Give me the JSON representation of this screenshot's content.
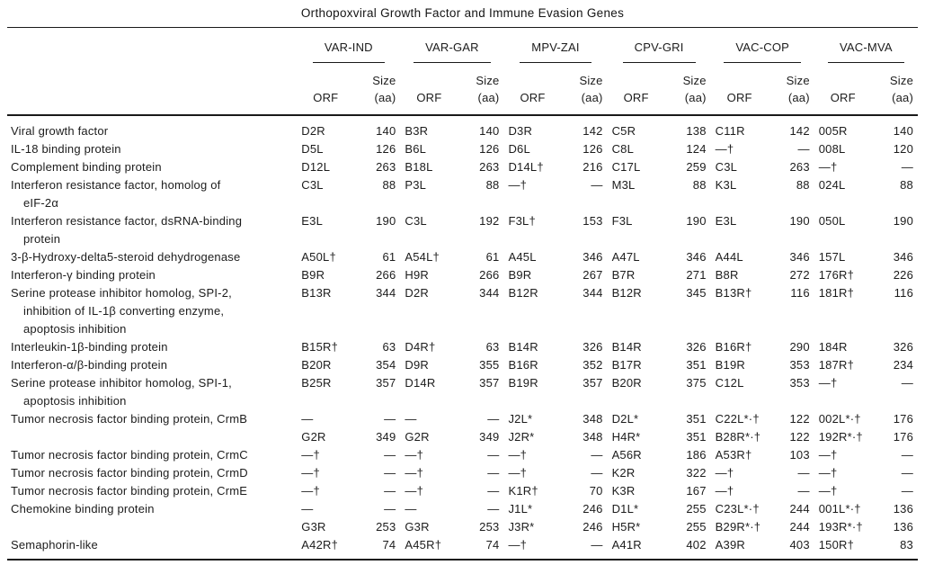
{
  "title": "Orthopoxviral Growth Factor and Immune Evasion Genes",
  "table": {
    "orf_label": "ORF",
    "size_label_line1": "Size",
    "size_label_line2": "(aa)",
    "groups": [
      "VAR-IND",
      "VAR-GAR",
      "MPV-ZAI",
      "CPV-GRI",
      "VAC-COP",
      "VAC-MVA"
    ],
    "rows": [
      {
        "label_lines": [
          "Viral growth factor"
        ],
        "cells": [
          "D2R",
          "140",
          "B3R",
          "140",
          "D3R",
          "142",
          "C5R",
          "138",
          "C11R",
          "142",
          "005R",
          "140"
        ]
      },
      {
        "label_lines": [
          "IL-18 binding protein"
        ],
        "cells": [
          "D5L",
          "126",
          "B6L",
          "126",
          "D6L",
          "126",
          "C8L",
          "124",
          "—†",
          "—",
          "008L",
          "120"
        ]
      },
      {
        "label_lines": [
          "Complement binding protein"
        ],
        "cells": [
          "D12L",
          "263",
          "B18L",
          "263",
          "D14L†",
          "216",
          "C17L",
          "259",
          "C3L",
          "263",
          "—†",
          "—"
        ]
      },
      {
        "label_lines": [
          "Interferon resistance factor, homolog of",
          "eIF-2α"
        ],
        "cells": [
          "C3L",
          "88",
          "P3L",
          "88",
          "—†",
          "—",
          "M3L",
          "88",
          "K3L",
          "88",
          "024L",
          "88"
        ]
      },
      {
        "label_lines": [
          "Interferon resistance factor, dsRNA-binding",
          "protein"
        ],
        "cells": [
          "E3L",
          "190",
          "C3L",
          "192",
          "F3L†",
          "153",
          "F3L",
          "190",
          "E3L",
          "190",
          "050L",
          "190"
        ]
      },
      {
        "label_lines": [
          "3-β-Hydroxy-delta5-steroid dehydrogenase"
        ],
        "cells": [
          "A50L†",
          "61",
          "A54L†",
          "61",
          "A45L",
          "346",
          "A47L",
          "346",
          "A44L",
          "346",
          "157L",
          "346"
        ]
      },
      {
        "label_lines": [
          "Interferon-γ binding protein"
        ],
        "cells": [
          "B9R",
          "266",
          "H9R",
          "266",
          "B9R",
          "267",
          "B7R",
          "271",
          "B8R",
          "272",
          "176R†",
          "226"
        ]
      },
      {
        "label_lines": [
          "Serine protease inhibitor homolog, SPI-2,",
          "inhibition of IL-1β converting enzyme,",
          "apoptosis inhibition"
        ],
        "cells": [
          "B13R",
          "344",
          "D2R",
          "344",
          "B12R",
          "344",
          "B12R",
          "345",
          "B13R†",
          "116",
          "181R†",
          "116"
        ]
      },
      {
        "label_lines": [
          "Interleukin-1β-binding protein"
        ],
        "cells": [
          "B15R†",
          "63",
          "D4R†",
          "63",
          "B14R",
          "326",
          "B14R",
          "326",
          "B16R†",
          "290",
          "184R",
          "326"
        ]
      },
      {
        "label_lines": [
          "Interferon-α/β-binding protein"
        ],
        "cells": [
          "B20R",
          "354",
          "D9R",
          "355",
          "B16R",
          "352",
          "B17R",
          "351",
          "B19R",
          "353",
          "187R†",
          "234"
        ]
      },
      {
        "label_lines": [
          "Serine protease inhibitor homolog, SPI-1,",
          "apoptosis inhibition"
        ],
        "cells": [
          "B25R",
          "357",
          "D14R",
          "357",
          "B19R",
          "357",
          "B20R",
          "375",
          "C12L",
          "353",
          "—†",
          "—"
        ]
      },
      {
        "label_lines": [
          "Tumor necrosis factor binding protein, CrmB"
        ],
        "cells": [
          "—",
          "—",
          "—",
          "—",
          "J2L*",
          "348",
          "D2L*",
          "351",
          "C22L*·†",
          "122",
          "002L*·†",
          "176"
        ]
      },
      {
        "label_lines": [],
        "cells": [
          "G2R",
          "349",
          "G2R",
          "349",
          "J2R*",
          "348",
          "H4R*",
          "351",
          "B28R*·†",
          "122",
          "192R*·†",
          "176"
        ]
      },
      {
        "label_lines": [
          "Tumor necrosis factor binding protein, CrmC"
        ],
        "cells": [
          "—†",
          "—",
          "—†",
          "—",
          "—†",
          "—",
          "A56R",
          "186",
          "A53R†",
          "103",
          "—†",
          "—"
        ]
      },
      {
        "label_lines": [
          "Tumor necrosis factor binding protein, CrmD"
        ],
        "cells": [
          "—†",
          "—",
          "—†",
          "—",
          "—†",
          "—",
          "K2R",
          "322",
          "—†",
          "—",
          "—†",
          "—"
        ]
      },
      {
        "label_lines": [
          "Tumor necrosis factor binding protein, CrmE"
        ],
        "cells": [
          "—†",
          "—",
          "—†",
          "—",
          "K1R†",
          "70",
          "K3R",
          "167",
          "—†",
          "—",
          "—†",
          "—"
        ]
      },
      {
        "label_lines": [
          "Chemokine binding protein"
        ],
        "cells": [
          "—",
          "—",
          "—",
          "—",
          "J1L*",
          "246",
          "D1L*",
          "255",
          "C23L*·†",
          "244",
          "001L*·†",
          "136"
        ]
      },
      {
        "label_lines": [],
        "cells": [
          "G3R",
          "253",
          "G3R",
          "253",
          "J3R*",
          "246",
          "H5R*",
          "255",
          "B29R*·†",
          "244",
          "193R*·†",
          "136"
        ]
      },
      {
        "label_lines": [
          "Semaphorin-like"
        ],
        "cells": [
          "A42R†",
          "74",
          "A45R†",
          "74",
          "—†",
          "—",
          "A41R",
          "402",
          "A39R",
          "403",
          "150R†",
          "83"
        ]
      }
    ]
  }
}
